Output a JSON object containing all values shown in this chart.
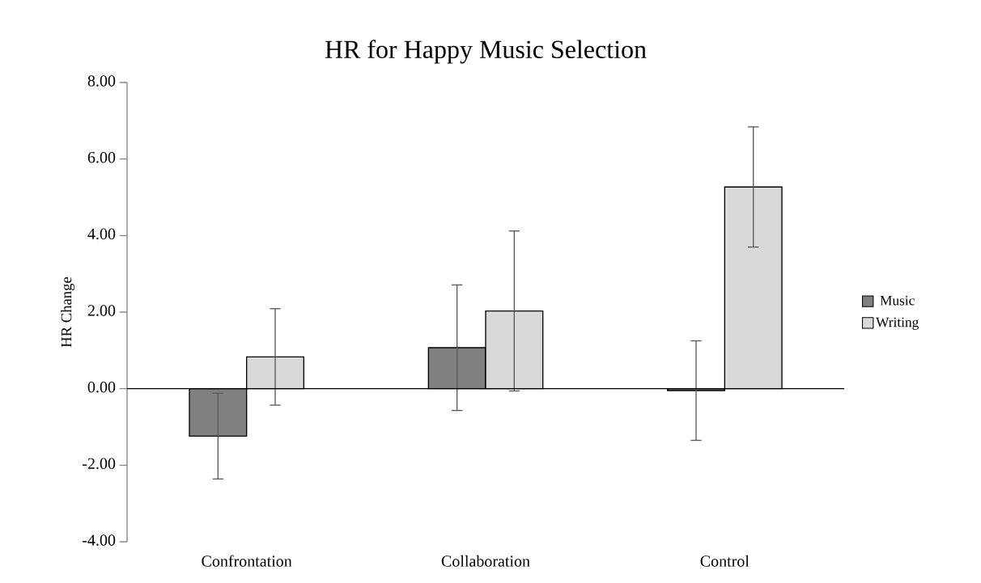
{
  "chart_data": {
    "type": "bar",
    "title": "HR for Happy Music Selection",
    "ylabel": "HR Change",
    "categories": [
      "Confrontation",
      "Collaboration",
      "Control"
    ],
    "series": [
      {
        "name": "Music",
        "color": "#808080",
        "values": [
          -1.24,
          1.07,
          -0.05
        ],
        "errors": [
          1.12,
          1.64,
          1.3
        ]
      },
      {
        "name": "Writing",
        "color": "#d9d9d9",
        "values": [
          0.83,
          2.03,
          5.27
        ],
        "errors": [
          1.26,
          2.09,
          1.57
        ]
      }
    ],
    "ylim": [
      -4,
      8
    ],
    "yticks": [
      {
        "value": -4,
        "label": "-4.00"
      },
      {
        "value": -2,
        "label": "-2.00"
      },
      {
        "value": 0,
        "label": "0.00"
      },
      {
        "value": 2,
        "label": "2.00"
      },
      {
        "value": 4,
        "label": "4.00"
      },
      {
        "value": 6,
        "label": "6.00"
      },
      {
        "value": 8,
        "label": "8.00"
      }
    ],
    "legend": "right"
  }
}
